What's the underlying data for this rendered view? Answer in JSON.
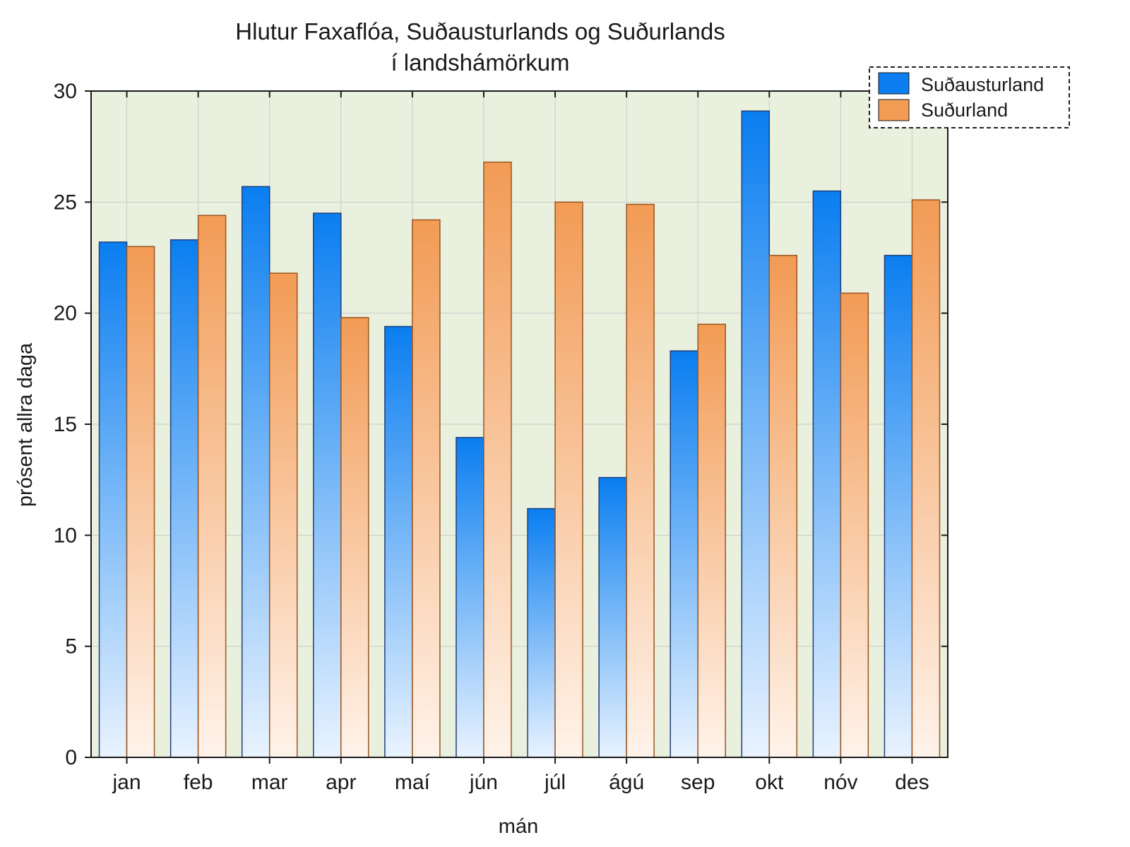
{
  "chart_data": {
    "type": "bar",
    "title": "Hlutur Faxaflóa, Suðausturlands og Suðurlands",
    "subtitle": "í landshámörkum",
    "xlabel": "mán",
    "ylabel": "prósent allra daga",
    "categories": [
      "jan",
      "feb",
      "mar",
      "apr",
      "maí",
      "jún",
      "júl",
      "ágú",
      "sep",
      "okt",
      "nóv",
      "des"
    ],
    "series": [
      {
        "name": "Suðausturland",
        "color": "#0a7ef0",
        "values": [
          23.2,
          23.3,
          25.7,
          24.5,
          19.4,
          14.4,
          11.2,
          12.6,
          18.3,
          29.1,
          25.5,
          22.6
        ]
      },
      {
        "name": "Suðurland",
        "color": "#f29b55",
        "values": [
          23.0,
          24.4,
          21.8,
          19.8,
          24.2,
          26.8,
          25.0,
          24.9,
          19.5,
          22.6,
          20.9,
          25.1
        ]
      }
    ],
    "ylim": [
      0,
      30
    ],
    "yticks": [
      0,
      5,
      10,
      15,
      20,
      25,
      30
    ],
    "grid": true,
    "legend_position": "top-right",
    "plot_background": "#e9f0de"
  }
}
